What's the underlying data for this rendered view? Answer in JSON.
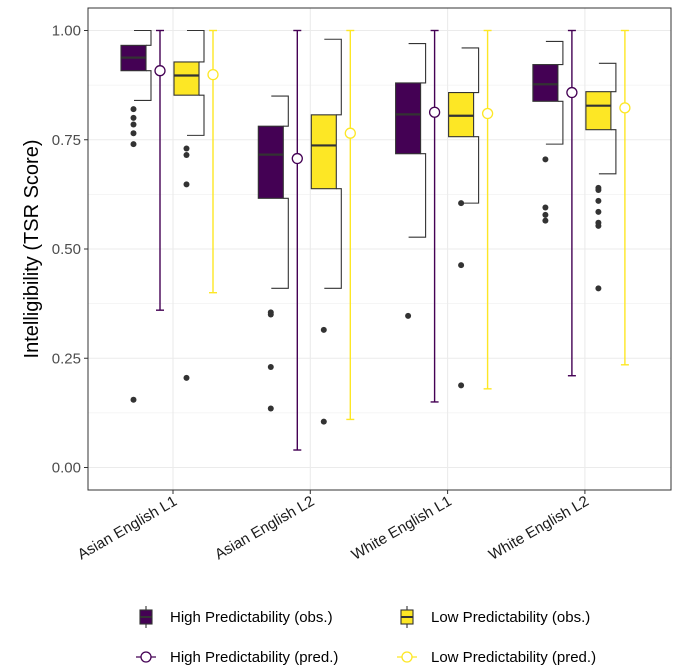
{
  "chart_data": {
    "type": "box",
    "title": "",
    "xlabel": "",
    "ylabel": "Intelligibility (TSR Score)",
    "ylim": [
      0,
      1.05
    ],
    "y_ticks": [
      "0.00",
      "0.25",
      "0.50",
      "0.75",
      "1.00"
    ],
    "y_tick_values": [
      0,
      0.25,
      0.5,
      0.75,
      1.0
    ],
    "categories": [
      "Asian English L1",
      "Asian English L2",
      "White English L1",
      "White English L2"
    ],
    "grid": true,
    "legend_position": "bottom",
    "colors": {
      "high": "#440154",
      "low": "#fde725",
      "outlier": "#333333",
      "panel_border": "#333333",
      "grid": "#ebebeb"
    },
    "legend": [
      {
        "key": "high_obs",
        "label": "High Predictability (obs.)"
      },
      {
        "key": "low_obs",
        "label": "Low Predictability (obs.)"
      },
      {
        "key": "high_pred",
        "label": "High Predictability (pred.)"
      },
      {
        "key": "low_pred",
        "label": "Low Predictability (pred.)"
      }
    ],
    "observed": [
      {
        "series": "High Predictability (obs.)",
        "category": "Asian English L1",
        "whisker_low": 0.84,
        "q1": 0.908,
        "median": 0.938,
        "q3": 0.966,
        "whisker_high": 1.0,
        "outliers": [
          0.82,
          0.8,
          0.785,
          0.765,
          0.74,
          0.155
        ]
      },
      {
        "series": "Low Predictability (obs.)",
        "category": "Asian English L1",
        "whisker_low": 0.76,
        "q1": 0.852,
        "median": 0.897,
        "q3": 0.928,
        "whisker_high": 1.0,
        "outliers": [
          0.73,
          0.715,
          0.648,
          0.205
        ]
      },
      {
        "series": "High Predictability (obs.)",
        "category": "Asian English L2",
        "whisker_low": 0.41,
        "q1": 0.616,
        "median": 0.716,
        "q3": 0.781,
        "whisker_high": 0.85,
        "outliers": [
          0.355,
          0.35,
          0.23,
          0.135
        ]
      },
      {
        "series": "Low Predictability (obs.)",
        "category": "Asian English L2",
        "whisker_low": 0.41,
        "q1": 0.638,
        "median": 0.737,
        "q3": 0.807,
        "whisker_high": 0.98,
        "outliers": [
          0.315,
          0.105
        ]
      },
      {
        "series": "High Predictability (obs.)",
        "category": "White English L1",
        "whisker_low": 0.527,
        "q1": 0.718,
        "median": 0.808,
        "q3": 0.88,
        "whisker_high": 0.97,
        "outliers": [
          0.347
        ]
      },
      {
        "series": "Low Predictability (obs.)",
        "category": "White English L1",
        "whisker_low": 0.605,
        "q1": 0.757,
        "median": 0.805,
        "q3": 0.858,
        "whisker_high": 0.96,
        "outliers": [
          0.605,
          0.463,
          0.188
        ]
      },
      {
        "series": "High Predictability (obs.)",
        "category": "White English L2",
        "whisker_low": 0.74,
        "q1": 0.838,
        "median": 0.877,
        "q3": 0.922,
        "whisker_high": 0.975,
        "outliers": [
          0.705,
          0.595,
          0.578,
          0.565
        ]
      },
      {
        "series": "Low Predictability (obs.)",
        "category": "White English L2",
        "whisker_low": 0.672,
        "q1": 0.773,
        "median": 0.828,
        "q3": 0.86,
        "whisker_high": 0.925,
        "outliers": [
          0.64,
          0.635,
          0.61,
          0.585,
          0.56,
          0.553,
          0.41
        ]
      }
    ],
    "predicted": [
      {
        "series": "High Predictability (pred.)",
        "category": "Asian English L1",
        "estimate": 0.908,
        "lower": 0.36,
        "upper": 1.0
      },
      {
        "series": "Low Predictability (pred.)",
        "category": "Asian English L1",
        "estimate": 0.899,
        "lower": 0.4,
        "upper": 1.0
      },
      {
        "series": "High Predictability (pred.)",
        "category": "Asian English L2",
        "estimate": 0.707,
        "lower": 0.04,
        "upper": 1.0
      },
      {
        "series": "Low Predictability (pred.)",
        "category": "Asian English L2",
        "estimate": 0.765,
        "lower": 0.11,
        "upper": 1.0
      },
      {
        "series": "High Predictability (pred.)",
        "category": "White English L1",
        "estimate": 0.813,
        "lower": 0.15,
        "upper": 1.0
      },
      {
        "series": "Low Predictability (pred.)",
        "category": "White English L1",
        "estimate": 0.81,
        "lower": 0.18,
        "upper": 1.0
      },
      {
        "series": "High Predictability (pred.)",
        "category": "White English L2",
        "estimate": 0.858,
        "lower": 0.21,
        "upper": 1.0
      },
      {
        "series": "Low Predictability (pred.)",
        "category": "White English L2",
        "estimate": 0.823,
        "lower": 0.235,
        "upper": 1.0
      }
    ]
  }
}
